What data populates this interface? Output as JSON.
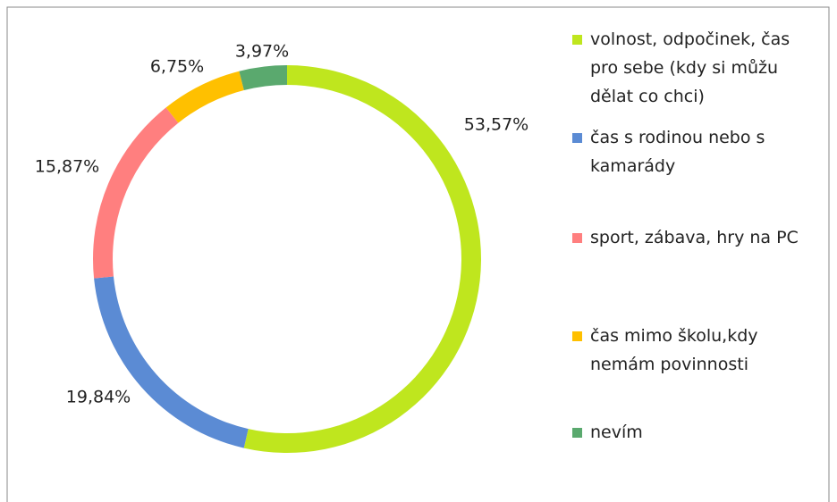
{
  "chart_data": {
    "type": "donut",
    "categories": [
      "volnost, odpočinek, čas pro sebe (kdy si můžu dělat co chci)",
      "čas s rodinou nebo s kamarády",
      "sport, zábava, hry na PC",
      "čas mimo školu,kdy nemám povinnosti",
      "nevím"
    ],
    "values": [
      53.57,
      19.84,
      15.87,
      6.75,
      3.97
    ],
    "value_labels": [
      "53,57%",
      "19,84%",
      "15,87%",
      "6,75%",
      "3,97%"
    ],
    "colors": [
      "#bfe61e",
      "#5b8bd4",
      "#ff7f7f",
      "#ffc000",
      "#5aa96e"
    ],
    "legend": "right"
  }
}
